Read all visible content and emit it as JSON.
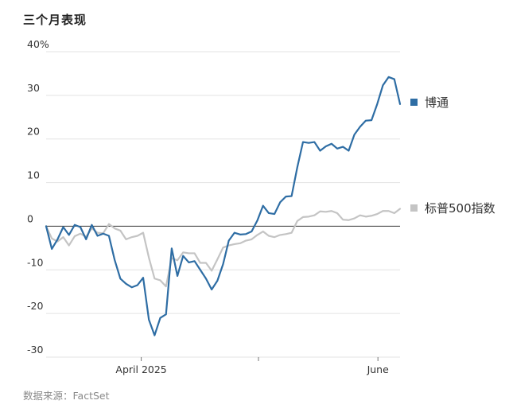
{
  "chart_data": {
    "type": "line",
    "title": "三个月表现",
    "source": "数据来源：FactSet",
    "ylim": [
      -30,
      40
    ],
    "yticks": [
      -30,
      -20,
      -10,
      0,
      10,
      20,
      30,
      40
    ],
    "ytick_labels": [
      "-30",
      "-20",
      "-10",
      "0",
      "10",
      "20",
      "30",
      "40%"
    ],
    "xlim": [
      0,
      80
    ],
    "xticks": [
      {
        "x": 21.5,
        "label": "April 2025"
      },
      {
        "x": 48,
        "label": ""
      },
      {
        "x": 75,
        "label": "June"
      }
    ],
    "grid": true,
    "legend": "right",
    "series": [
      {
        "name": "博通",
        "color": "#2e6da4",
        "values": [
          0,
          -5.2,
          -3,
          -0.2,
          -2,
          0.3,
          -0.2,
          -3,
          0.3,
          -2.2,
          -1.7,
          -2.2,
          -7.7,
          -12,
          -13.2,
          -14,
          -13.5,
          -11.8,
          -21.4,
          -25,
          -21,
          -20.2,
          -5.1,
          -11.4,
          -6.8,
          -8.3,
          -8,
          -10,
          -12,
          -14.5,
          -12.5,
          -8.7,
          -3.3,
          -1.5,
          -1.9,
          -1.8,
          -1.2,
          1.3,
          4.7,
          3,
          2.8,
          5.5,
          6.8,
          6.9,
          13.5,
          19.3,
          19.1,
          19.3,
          17.3,
          18.3,
          18.9,
          17.8,
          18.2,
          17.3,
          21,
          22.8,
          24.2,
          24.3,
          28,
          32.3,
          34.2,
          33.7,
          28
        ]
      },
      {
        "name": "标普500指数",
        "color": "#c4c4c4",
        "values": [
          0,
          -2.8,
          -3.5,
          -2.5,
          -4.4,
          -2.3,
          -1.7,
          -2.4,
          -0.5,
          -1.5,
          -1.6,
          0.5,
          -0.5,
          -1,
          -3,
          -2.5,
          -2.2,
          -1.5,
          -7.2,
          -12,
          -12.4,
          -13.8,
          -7.3,
          -7.8,
          -6,
          -6.2,
          -6.2,
          -8.4,
          -8.4,
          -10.2,
          -7.6,
          -4.9,
          -4.4,
          -4.1,
          -3.9,
          -3.3,
          -3,
          -2,
          -1.2,
          -2.2,
          -2.5,
          -2,
          -1.8,
          -1.5,
          1.2,
          2.1,
          2.2,
          2.5,
          3.4,
          3.3,
          3.5,
          3,
          1.5,
          1.4,
          1.8,
          2.5,
          2.2,
          2.4,
          2.8,
          3.5,
          3.5,
          3,
          4
        ]
      }
    ]
  }
}
